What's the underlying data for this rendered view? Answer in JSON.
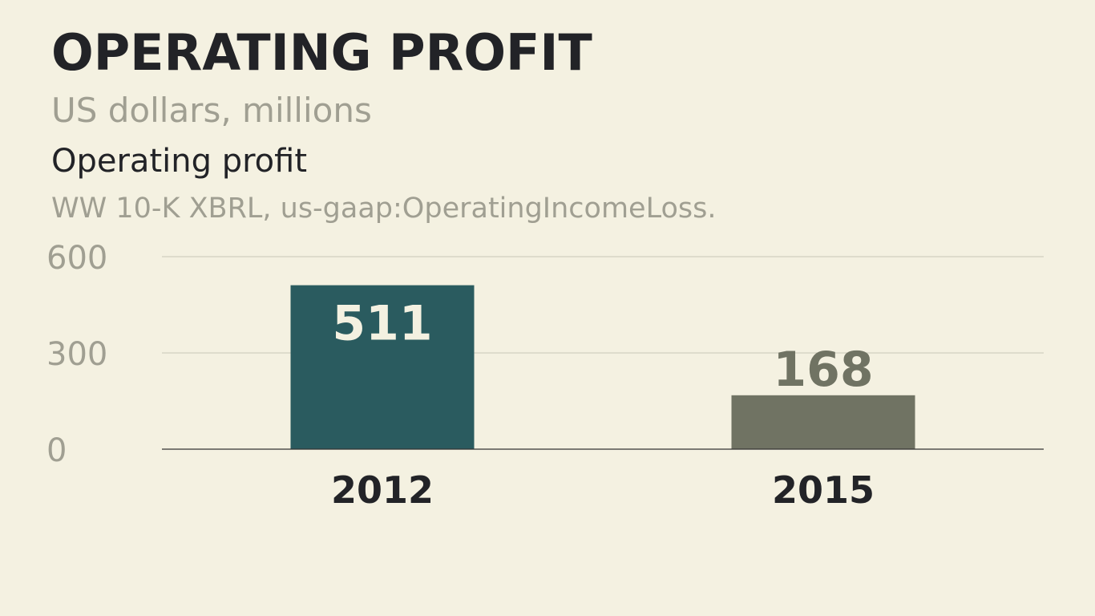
{
  "header": {
    "title": "OPERATING PROFIT",
    "subtitle": "US dollars, millions",
    "series_label": "Operating profit",
    "source": "WW 10-K XBRL, us-gaap:OperatingIncomeLoss."
  },
  "colors": {
    "background": "#f4f1e1",
    "bar_primary": "#2a5b5f",
    "bar_secondary": "#707363",
    "label_inside": "#f4f1e1",
    "label_outside": "#707363",
    "axis_text": "#a09f92",
    "category_text": "#222327",
    "gridline": "#c9c6b6",
    "baseline": "#333333"
  },
  "chart_data": {
    "type": "bar",
    "categories": [
      "2012",
      "2015"
    ],
    "values": [
      511,
      168
    ],
    "data_labels": [
      "511",
      "168"
    ],
    "ylim": [
      0,
      600
    ],
    "yticks": [
      0,
      300,
      600
    ],
    "ytick_labels": [
      "0",
      "300",
      "600"
    ],
    "grid": true,
    "legend": "none",
    "xlabel": "",
    "ylabel": ""
  }
}
